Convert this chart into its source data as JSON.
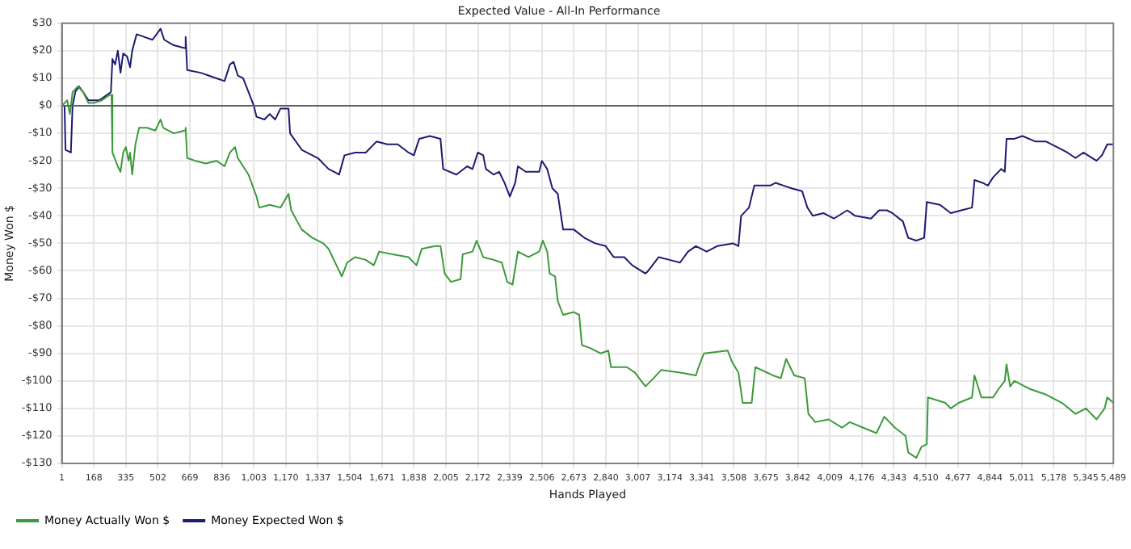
{
  "chart_data": {
    "type": "line",
    "title": "Expected Value - All-In Performance",
    "xlabel": "Hands Played",
    "ylabel": "Money Won $",
    "xlim": [
      1,
      5489
    ],
    "xticks": [
      1,
      168,
      335,
      502,
      669,
      836,
      {
        "value": 1003,
        "label": "1,003"
      },
      {
        "value": 1170,
        "label": "1,170"
      },
      {
        "value": 1337,
        "label": "1,337"
      },
      {
        "value": 1504,
        "label": "1,504"
      },
      {
        "value": 1671,
        "label": "1,671"
      },
      {
        "value": 1838,
        "label": "1,838"
      },
      {
        "value": 2005,
        "label": "2,005"
      },
      {
        "value": 2172,
        "label": "2,172"
      },
      {
        "value": 2339,
        "label": "2,339"
      },
      {
        "value": 2506,
        "label": "2,506"
      },
      {
        "value": 2673,
        "label": "2,673"
      },
      {
        "value": 2840,
        "label": "2,840"
      },
      {
        "value": 3007,
        "label": "3,007"
      },
      {
        "value": 3174,
        "label": "3,174"
      },
      {
        "value": 3341,
        "label": "3,341"
      },
      {
        "value": 3508,
        "label": "3,508"
      },
      {
        "value": 3675,
        "label": "3,675"
      },
      {
        "value": 3842,
        "label": "3,842"
      },
      {
        "value": 4009,
        "label": "4,009"
      },
      {
        "value": 4176,
        "label": "4,176"
      },
      {
        "value": 4343,
        "label": "4,343"
      },
      {
        "value": 4510,
        "label": "4,510"
      },
      {
        "value": 4677,
        "label": "4,677"
      },
      {
        "value": 4844,
        "label": "4,844"
      },
      {
        "value": 5011,
        "label": "5,011"
      },
      {
        "value": 5178,
        "label": "5,178"
      },
      {
        "value": 5345,
        "label": "5,345"
      },
      {
        "value": 5489,
        "label": "5,489"
      }
    ],
    "ylim": [
      -130,
      30
    ],
    "yticks": [
      {
        "value": -130,
        "label": "-$130"
      },
      {
        "value": -120,
        "label": "-$120"
      },
      {
        "value": -110,
        "label": "-$110"
      },
      {
        "value": -100,
        "label": "-$100"
      },
      {
        "value": -90,
        "label": "-$90"
      },
      {
        "value": -80,
        "label": "-$80"
      },
      {
        "value": -70,
        "label": "-$70"
      },
      {
        "value": -60,
        "label": "-$60"
      },
      {
        "value": -50,
        "label": "-$50"
      },
      {
        "value": -40,
        "label": "-$40"
      },
      {
        "value": -30,
        "label": "-$30"
      },
      {
        "value": -20,
        "label": "-$20"
      },
      {
        "value": -10,
        "label": "-$10"
      },
      {
        "value": 0,
        "label": "$0"
      },
      {
        "value": 10,
        "label": "$10"
      },
      {
        "value": 20,
        "label": "$20"
      },
      {
        "value": 30,
        "label": "$30"
      }
    ],
    "grid": true,
    "legend": "bottom left",
    "marker": "none",
    "line_style": "solid",
    "ref_lines": [
      {
        "axis": "y",
        "value": 0,
        "color": "#606060"
      }
    ],
    "series": [
      {
        "name": "Money Actually Won $",
        "color": "#3c9a3c",
        "x": [
          1,
          29,
          43,
          57,
          84,
          112,
          140,
          168,
          210,
          251,
          260,
          265,
          293,
          307,
          321,
          335,
          349,
          357,
          368,
          385,
          404,
          446,
          488,
          516,
          530,
          585,
          641,
          647,
          655,
          697,
          752,
          808,
          850,
          878,
          905,
          919,
          947,
          975,
          1017,
          1031,
          1086,
          1142,
          1184,
          1198,
          1253,
          1309,
          1365,
          1393,
          1434,
          1462,
          1490,
          1532,
          1587,
          1629,
          1657,
          1727,
          1810,
          1852,
          1879,
          1949,
          1977,
          1999,
          2032,
          2082,
          2093,
          2144,
          2166,
          2200,
          2255,
          2297,
          2325,
          2353,
          2381,
          2436,
          2492,
          2511,
          2534,
          2547,
          2575,
          2589,
          2617,
          2673,
          2701,
          2715,
          2756,
          2812,
          2853,
          2867,
          2950,
          2992,
          3047,
          3089,
          3130,
          3227,
          3310,
          3324,
          3352,
          3476,
          3498,
          3532,
          3554,
          3601,
          3620,
          3712,
          3753,
          3781,
          3823,
          3878,
          3897,
          3933,
          4003,
          4072,
          4113,
          4183,
          4252,
          4293,
          4349,
          4404,
          4418,
          4460,
          4487,
          4515,
          4521,
          4612,
          4640,
          4681,
          4751,
          4764,
          4800,
          4861,
          4889,
          4922,
          4931,
          4950,
          4972,
          5055,
          5138,
          5221,
          5291,
          5346,
          5401,
          5443,
          5457,
          5489
        ],
        "values": [
          0,
          2,
          -3,
          5,
          7,
          5,
          1,
          1,
          2,
          4,
          4,
          -17,
          -22,
          -24,
          -17,
          -15,
          -20,
          -17,
          -25,
          -14,
          -8,
          -8,
          -9,
          -5,
          -8,
          -10,
          -9,
          -8,
          -19,
          -20,
          -21,
          -20,
          -22,
          -17,
          -15,
          -19,
          -22,
          -25,
          -33,
          -37,
          -36,
          -37,
          -32,
          -38,
          -45,
          -48,
          -50,
          -52,
          -58,
          -62,
          -57,
          -55,
          -56,
          -58,
          -53,
          -54,
          -55,
          -58,
          -52,
          -51,
          -51,
          -61,
          -64,
          -63,
          -54,
          -53,
          -49,
          -55,
          -56,
          -57,
          -64,
          -65,
          -53,
          -55,
          -53,
          -49,
          -53,
          -61,
          -62,
          -71,
          -76,
          -75,
          -76,
          -87,
          -88,
          -90,
          -89,
          -95,
          -95,
          -97,
          -102,
          -99,
          -96,
          -97,
          -98,
          -95,
          -90,
          -89,
          -93,
          -97,
          -108,
          -108,
          -95,
          -98,
          -99,
          -92,
          -98,
          -99,
          -112,
          -115,
          -114,
          -117,
          -115,
          -117,
          -119,
          -113,
          -117,
          -120,
          -126,
          -128,
          -124,
          -123,
          -106,
          -108,
          -110,
          -108,
          -106,
          -98,
          -106,
          -106,
          -103,
          -100,
          -94,
          -102,
          -100,
          -103,
          -105,
          -108,
          -112,
          -110,
          -114,
          -110,
          -106,
          -108
        ]
      },
      {
        "name": "Money Expected Won $",
        "color": "#1c1c70",
        "x": [
          1,
          15,
          20,
          48,
          57,
          71,
          90,
          112,
          140,
          196,
          238,
          257,
          265,
          279,
          293,
          307,
          321,
          341,
          357,
          368,
          391,
          432,
          474,
          516,
          535,
          585,
          641,
          647,
          655,
          725,
          808,
          850,
          878,
          897,
          919,
          947,
          975,
          1003,
          1017,
          1058,
          1086,
          1114,
          1142,
          1184,
          1192,
          1253,
          1337,
          1393,
          1448,
          1476,
          1532,
          1587,
          1643,
          1699,
          1754,
          1810,
          1838,
          1866,
          1921,
          1977,
          1991,
          2060,
          2116,
          2144,
          2172,
          2200,
          2214,
          2255,
          2283,
          2311,
          2339,
          2367,
          2381,
          2422,
          2492,
          2506,
          2534,
          2561,
          2589,
          2617,
          2673,
          2728,
          2784,
          2839,
          2881,
          2936,
          2978,
          3047,
          3061,
          3116,
          3172,
          3227,
          3269,
          3310,
          3366,
          3421,
          3504,
          3532,
          3546,
          3587,
          3615,
          3643,
          3698,
          3726,
          3767,
          3809,
          3864,
          3892,
          3920,
          3975,
          4030,
          4100,
          4141,
          4224,
          4266,
          4307,
          4335,
          4390,
          4418,
          4460,
          4501,
          4515,
          4584,
          4640,
          4695,
          4751,
          4764,
          4806,
          4834,
          4861,
          4903,
          4922,
          4931,
          4972,
          5014,
          5083,
          5138,
          5194,
          5249,
          5291,
          5332,
          5401,
          5429,
          5457,
          5489
        ],
        "values": [
          0,
          0,
          -16,
          -17,
          0,
          5,
          7,
          5,
          2,
          2,
          4,
          5,
          17,
          15,
          20,
          12,
          19,
          18,
          14,
          20,
          26,
          25,
          24,
          28,
          24,
          22,
          21,
          25,
          13,
          12,
          10,
          9,
          15,
          16,
          11,
          10,
          5,
          0,
          -4,
          -5,
          -3,
          -5,
          -1,
          -1,
          -10,
          -16,
          -19,
          -23,
          -25,
          -18,
          -17,
          -17,
          -13,
          -14,
          -14,
          -17,
          -18,
          -12,
          -11,
          -12,
          -23,
          -25,
          -22,
          -23,
          -17,
          -18,
          -23,
          -25,
          -24,
          -28,
          -33,
          -28,
          -22,
          -24,
          -24,
          -20,
          -23,
          -30,
          -32,
          -45,
          -45,
          -48,
          -50,
          -51,
          -55,
          -55,
          -58,
          -61,
          -60,
          -55,
          -56,
          -57,
          -53,
          -51,
          -53,
          -51,
          -50,
          -51,
          -40,
          -37,
          -29,
          -29,
          -29,
          -28,
          -29,
          -30,
          -31,
          -37,
          -40,
          -39,
          -41,
          -38,
          -40,
          -41,
          -38,
          -38,
          -39,
          -42,
          -48,
          -49,
          -48,
          -35,
          -36,
          -39,
          -38,
          -37,
          -27,
          -28,
          -29,
          -26,
          -23,
          -24,
          -12,
          -12,
          -11,
          -13,
          -13,
          -15,
          -17,
          -19,
          -17,
          -20,
          -18,
          -14,
          -14
        ]
      }
    ]
  }
}
